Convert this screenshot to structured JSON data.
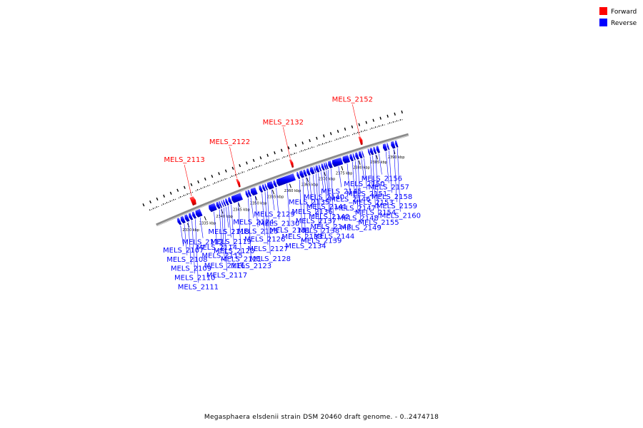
{
  "caption": "Megasphaera elsdenii strain DSM 20460 draft genome. - 0..2474718",
  "legend": [
    {
      "label": "Forward",
      "color": "#ff0000"
    },
    {
      "label": "Reverse",
      "color": "#0000ff"
    }
  ],
  "colors": {
    "forward": "#ff0000",
    "reverse": "#0000ff",
    "backbone": "#808080"
  },
  "ticks": [
    {
      "label": "2330 kbp",
      "kbp": 2330
    },
    {
      "label": "2335 kbp",
      "kbp": 2335
    },
    {
      "label": "2340 kbp",
      "kbp": 2340
    },
    {
      "label": "2345 kbp",
      "kbp": 2345
    },
    {
      "label": "2350 kbp",
      "kbp": 2350
    },
    {
      "label": "2355 kbp",
      "kbp": 2355
    },
    {
      "label": "2360 kbp",
      "kbp": 2360
    },
    {
      "label": "2365 kbp",
      "kbp": 2365
    },
    {
      "label": "2370 kbp",
      "kbp": 2370
    },
    {
      "label": "2375 kbp",
      "kbp": 2375
    },
    {
      "label": "2380 kbp",
      "kbp": 2380
    },
    {
      "label": "2385 kbp",
      "kbp": 2385
    },
    {
      "label": "2390 kbp",
      "kbp": 2390
    }
  ],
  "genes": [
    {
      "name": "MELS_2107",
      "strand": "reverse",
      "start": 2327.6,
      "end": 2328.4
    },
    {
      "name": "MELS_2108",
      "strand": "reverse",
      "start": 2328.6,
      "end": 2329.6
    },
    {
      "name": "MELS_2109",
      "strand": "reverse",
      "start": 2329.8,
      "end": 2330.8
    },
    {
      "name": "MELS_2110",
      "strand": "reverse",
      "start": 2331.0,
      "end": 2331.8
    },
    {
      "name": "MELS_2111",
      "strand": "reverse",
      "start": 2332.0,
      "end": 2332.8
    },
    {
      "name": "MELS_2112",
      "strand": "reverse",
      "start": 2333.0,
      "end": 2334.6
    },
    {
      "name": "MELS_2113",
      "strand": "forward",
      "start": 2333.2,
      "end": 2334.5
    },
    {
      "name": "MELS_2114",
      "strand": "reverse",
      "start": 2336.9,
      "end": 2338.9
    },
    {
      "name": "MELS_2115",
      "strand": "reverse",
      "start": 2339.1,
      "end": 2339.9
    },
    {
      "name": "MELS_2116",
      "strand": "reverse",
      "start": 2340.0,
      "end": 2340.4
    },
    {
      "name": "MELS_2117",
      "strand": "reverse",
      "start": 2340.7,
      "end": 2341.0
    },
    {
      "name": "MELS_2118",
      "strand": "reverse",
      "start": 2341.2,
      "end": 2341.6
    },
    {
      "name": "MELS_2119",
      "strand": "reverse",
      "start": 2341.8,
      "end": 2342.4
    },
    {
      "name": "MELS_2120",
      "strand": "reverse",
      "start": 2342.6,
      "end": 2343.4
    },
    {
      "name": "MELS_2121",
      "strand": "reverse",
      "start": 2343.6,
      "end": 2346.5
    },
    {
      "name": "MELS_2122",
      "strand": "forward",
      "start": 2346.7,
      "end": 2347.4
    },
    {
      "name": "MELS_2123",
      "strand": "reverse",
      "start": 2347.7,
      "end": 2348.3
    },
    {
      "name": "MELS_2124",
      "strand": "reverse",
      "start": 2348.4,
      "end": 2349.0
    },
    {
      "name": "MELS_2125",
      "strand": "reverse",
      "start": 2349.2,
      "end": 2350.8
    },
    {
      "name": "MELS_2126",
      "strand": "reverse",
      "start": 2351.6,
      "end": 2352.4
    },
    {
      "name": "MELS_2127",
      "strand": "reverse",
      "start": 2352.6,
      "end": 2353.2
    },
    {
      "name": "MELS_2128",
      "strand": "reverse",
      "start": 2353.4,
      "end": 2353.8
    },
    {
      "name": "MELS_2129",
      "strand": "reverse",
      "start": 2354.0,
      "end": 2355.6
    },
    {
      "name": "MELS_2130",
      "strand": "reverse",
      "start": 2355.8,
      "end": 2356.5
    },
    {
      "name": "MELS_2131",
      "strand": "reverse",
      "start": 2356.7,
      "end": 2361.9
    },
    {
      "name": "MELS_2132",
      "strand": "forward",
      "start": 2362.1,
      "end": 2362.8
    },
    {
      "name": "MELS_2133",
      "strand": "reverse",
      "start": 2362.6,
      "end": 2363.2
    },
    {
      "name": "MELS_2134",
      "strand": "reverse",
      "start": 2363.4,
      "end": 2364.4
    },
    {
      "name": "MELS_2135",
      "strand": "reverse",
      "start": 2364.5,
      "end": 2365.2
    },
    {
      "name": "MELS_2136",
      "strand": "reverse",
      "start": 2365.4,
      "end": 2366.2
    },
    {
      "name": "MELS_2137",
      "strand": "reverse",
      "start": 2366.4,
      "end": 2367.4
    },
    {
      "name": "MELS_2138",
      "strand": "reverse",
      "start": 2367.6,
      "end": 2367.9
    },
    {
      "name": "MELS_2139",
      "strand": "reverse",
      "start": 2368.0,
      "end": 2368.8
    },
    {
      "name": "MELS_2140",
      "strand": "reverse",
      "start": 2369.0,
      "end": 2369.4
    },
    {
      "name": "MELS_2141",
      "strand": "reverse",
      "start": 2369.7,
      "end": 2370.3
    },
    {
      "name": "MELS_2142",
      "strand": "reverse",
      "start": 2370.5,
      "end": 2370.9
    },
    {
      "name": "MELS_2143",
      "strand": "reverse",
      "start": 2371.0,
      "end": 2371.4
    },
    {
      "name": "MELS_2144",
      "strand": "reverse",
      "start": 2371.6,
      "end": 2372.6
    },
    {
      "name": "MELS_2145",
      "strand": "reverse",
      "start": 2372.8,
      "end": 2375.6
    },
    {
      "name": "MELS_2146",
      "strand": "reverse",
      "start": 2375.8,
      "end": 2377.6
    },
    {
      "name": "MELS_2147",
      "strand": "reverse",
      "start": 2377.8,
      "end": 2378.6
    },
    {
      "name": "MELS_2148",
      "strand": "reverse",
      "start": 2378.8,
      "end": 2379.2
    },
    {
      "name": "MELS_2149",
      "strand": "reverse",
      "start": 2379.4,
      "end": 2380.2
    },
    {
      "name": "MELS_2150",
      "strand": "reverse",
      "start": 2380.4,
      "end": 2381.2
    },
    {
      "name": "MELS_2151",
      "strand": "reverse",
      "start": 2381.4,
      "end": 2381.7
    },
    {
      "name": "MELS_2152",
      "strand": "forward",
      "start": 2381.8,
      "end": 2382.6
    },
    {
      "name": "MELS_2153",
      "strand": "reverse",
      "start": 2383.1,
      "end": 2383.5
    },
    {
      "name": "MELS_2154",
      "strand": "reverse",
      "start": 2383.6,
      "end": 2384.4
    },
    {
      "name": "MELS_2155",
      "strand": "reverse",
      "start": 2384.6,
      "end": 2385.2
    },
    {
      "name": "MELS_2156",
      "strand": "reverse",
      "start": 2385.4,
      "end": 2386.2
    },
    {
      "name": "MELS_2157",
      "strand": "reverse",
      "start": 2387.3,
      "end": 2388.3
    },
    {
      "name": "MELS_2158",
      "strand": "reverse",
      "start": 2388.5,
      "end": 2388.9
    },
    {
      "name": "MELS_2159",
      "strand": "reverse",
      "start": 2389.6,
      "end": 2390.6
    },
    {
      "name": "MELS_2160",
      "strand": "reverse",
      "start": 2390.8,
      "end": 2391.4
    }
  ]
}
